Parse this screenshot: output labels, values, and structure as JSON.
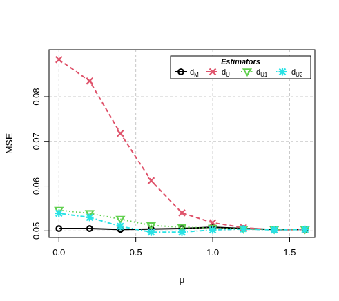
{
  "chart_data": {
    "type": "line",
    "title": "",
    "xlabel": "μ",
    "ylabel": "MSE",
    "xlim": [
      -0.064,
      1.664
    ],
    "ylim": [
      0.0485,
      0.0905
    ],
    "xticks": [
      0.0,
      0.5,
      1.0,
      1.5
    ],
    "xtick_labels": [
      "0.0",
      "0.5",
      "1.0",
      "1.5"
    ],
    "yticks": [
      0.05,
      0.06,
      0.07,
      0.08
    ],
    "ytick_labels": [
      "0.05",
      "0.06",
      "0.07",
      "0.08"
    ],
    "grid": true,
    "legend": {
      "title": "Estimators",
      "placement": "top-right",
      "entries": [
        {
          "label": "d",
          "sub": "M"
        },
        {
          "label": "d",
          "sub": "U"
        },
        {
          "label": "d",
          "sub": "U1"
        },
        {
          "label": "d",
          "sub": "U2"
        }
      ]
    },
    "x": [
      0.0,
      0.2,
      0.4,
      0.6,
      0.8,
      1.0,
      1.2,
      1.4,
      1.6
    ],
    "series": [
      {
        "key": "dM",
        "color": "#000000",
        "marker": "circle",
        "dash": "solid",
        "values": [
          0.0505,
          0.0505,
          0.0503,
          0.0504,
          0.0505,
          0.0508,
          0.0505,
          0.0503,
          0.0503
        ]
      },
      {
        "key": "dU",
        "color": "#df536b",
        "marker": "x",
        "dash": "dashed",
        "values": [
          0.0883,
          0.0835,
          0.0718,
          0.0612,
          0.054,
          0.0518,
          0.0507,
          0.0502,
          0.0503
        ]
      },
      {
        "key": "dU1",
        "color": "#61d04f",
        "marker": "triangle-down",
        "dash": "dotted",
        "values": [
          0.0546,
          0.0539,
          0.0526,
          0.0512,
          0.0508,
          0.0506,
          0.0504,
          0.0503,
          0.0503
        ]
      },
      {
        "key": "dU2",
        "color": "#28e2e5",
        "marker": "asterisk",
        "dash": "dotdash",
        "values": [
          0.0539,
          0.053,
          0.051,
          0.0497,
          0.0497,
          0.0502,
          0.0504,
          0.0502,
          0.0503
        ]
      }
    ]
  }
}
